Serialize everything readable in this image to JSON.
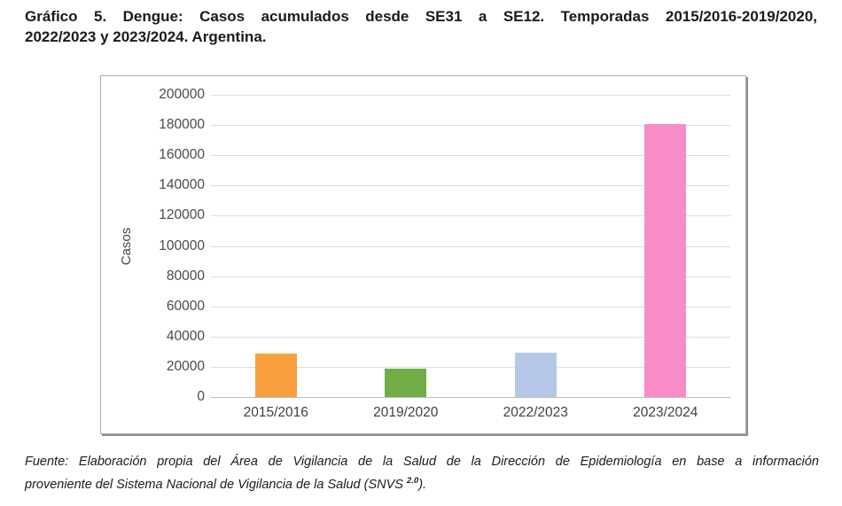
{
  "page": {
    "title_line1": "Gráfico 5. Dengue: Casos acumulados desde SE31 a SE12. Temporadas 2015/2016-2019/2020,",
    "title_line2": "2022/2023 y 2023/2024. Argentina.",
    "footer_line1": "Fuente: Elaboración propia del Área de Vigilancia de la Salud de la Dirección de Epidemiología en base a información",
    "footer_line2": "proveniente del Sistema Nacional de Vigilancia de la Salud (SNVS ",
    "footer_superscript": "2.0",
    "footer_line2_end": ")."
  },
  "chart_data": {
    "type": "bar",
    "title": "",
    "categories": [
      "2015/2016",
      "2019/2020",
      "2022/2023",
      "2023/2024"
    ],
    "values": [
      28500,
      19000,
      29500,
      180500
    ],
    "bar_colors": [
      "#F9A03C",
      "#70AD47",
      "#B4C7E7",
      "#F98CC7"
    ],
    "xlabel": "",
    "ylabel": "Casos",
    "ylim": [
      0,
      200000
    ],
    "ytick_step": 20000,
    "ytick_labels": [
      "0",
      "20000",
      "40000",
      "60000",
      "80000",
      "100000",
      "120000",
      "140000",
      "160000",
      "180000",
      "200000"
    ],
    "grid": "horizontal",
    "gridline_color": "#DDDDDD",
    "axis_line_color": "#BDBDBD",
    "legend": "none"
  }
}
